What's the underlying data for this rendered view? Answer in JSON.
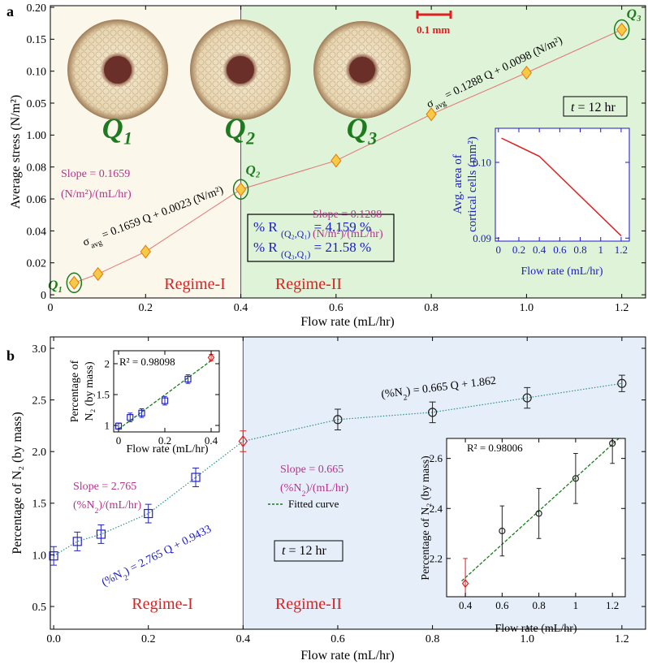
{
  "chart_data": [
    {
      "type": "line",
      "panel_label": "a",
      "xlabel": "Flow rate (mL/hr)",
      "ylabel": "Average stress (N/m²)",
      "xlim": [
        0,
        1.25
      ],
      "ylim": [
        -0.002,
        0.181
      ],
      "xticks": [
        0,
        0.2,
        0.4,
        0.6,
        0.8,
        {
          "value": 1,
          "label": "1.0"
        },
        1.2
      ],
      "yticks": [
        0,
        0.02,
        0.04,
        0.06,
        0.08,
        {
          "value": 0.1,
          "label": "1.00"
        },
        {
          "value": 0.12,
          "label": "0.05"
        },
        {
          "value": 0.14,
          "label": "0.10"
        },
        {
          "value": 0.16,
          "label": "0.15"
        },
        {
          "value": 0.18,
          "label": "0.20"
        }
      ],
      "regime_split": 0.4,
      "shade_colors": [
        "#fbf7ea",
        "#dff3d8"
      ],
      "regimes": [
        "Regime-I",
        "Regime-II"
      ],
      "regime_color": "#e02020",
      "series": [
        {
          "color": "#e57373",
          "marker_fill": "#f7c948",
          "marker_stroke": "#e07b00",
          "x": [
            0.05,
            0.1,
            0.2,
            0.4,
            0.6,
            0.8,
            1.0,
            1.2
          ],
          "values": [
            0.0075,
            0.013,
            0.027,
            0.066,
            0.084,
            0.113,
            0.139,
            0.166
          ]
        }
      ],
      "point_labels": [
        "Q₁",
        "Q₂",
        "Q₃"
      ],
      "point_label_color": "#1f7a1f",
      "image_labels": [
        "Q₁",
        "Q₂",
        "Q₃"
      ],
      "scale_bar": "0.1 mm",
      "scale_bar_color": "#e02020",
      "annotations": [
        {
          "text": "Slope = 0.1659",
          "color": "#b5338f"
        },
        {
          "text": "(N/m²)/(mL/hr)",
          "color": "#b5338f"
        },
        {
          "parts": [
            "σ",
            "avg",
            " = 0.1659 Q + 0.0023 (N/m²)"
          ],
          "sub": [
            1
          ],
          "color": "#000000"
        },
        {
          "text": "Slope = 0.1288",
          "color": "#b5338f"
        },
        {
          "text": "(N/m²)/(mL/hr)",
          "color": "#b5338f"
        },
        {
          "parts": [
            "σ",
            "avg",
            " = 0.1288 Q + 0.0098 (N/m²)"
          ],
          "sub": [
            1
          ],
          "color": "#000000"
        },
        {
          "parts": [
            "% R ",
            "(Q₂,Q₁)",
            " = 4.159 %"
          ],
          "sub": [
            1
          ],
          "color": "#1a1ac8"
        },
        {
          "parts": [
            "% R ",
            "(Q₃,Q₁)",
            " = 21.58 %"
          ],
          "sub": [
            1
          ],
          "color": "#1a1ac8"
        },
        {
          "parts": [
            "t",
            " = 12 hr"
          ],
          "italic": [
            0
          ],
          "color": "#000000"
        }
      ]
    },
    {
      "type": "line",
      "xlabel": "Flow rate (mL/hr)",
      "ylabel": [
        "Avg. area of",
        "cortical cells (mm²)"
      ],
      "axis_color": "#1a1ac8",
      "xlim": [
        -0.03,
        1.28
      ],
      "ylim": [
        0.0896,
        0.1045
      ],
      "xticks": [
        0,
        0.2,
        0.4,
        0.6,
        0.8,
        1,
        1.2
      ],
      "yticks": [
        0.09,
        {
          "value": 0.1,
          "label": "0.10"
        }
      ],
      "series": [
        {
          "color": "#e02020",
          "x": [
            0.03,
            0.4,
            1.2
          ],
          "values": [
            0.1032,
            0.1008,
            0.0903
          ]
        }
      ]
    },
    {
      "type": "errorbar",
      "panel_label": "b",
      "xlabel": "Flow rate (mL/hr)",
      "ylabel": "Percentage of N₂ (by mass)",
      "xlim": [
        -0.007,
        1.25
      ],
      "ylim": [
        0.28,
        3.11
      ],
      "xticks": [
        {
          "value": 0,
          "label": "0.0"
        },
        0.2,
        0.4,
        0.6,
        0.8,
        {
          "value": 1,
          "label": "1.0"
        },
        1.2
      ],
      "yticks": [
        0.5,
        {
          "value": 1,
          "label": "1.0"
        },
        1.5,
        {
          "value": 2,
          "label": "2.0"
        },
        2.5,
        {
          "value": 3,
          "label": "3.0"
        }
      ],
      "regime_split": 0.4,
      "shade_colors": [
        "#ffffff",
        "#e6eff9"
      ],
      "regimes": [
        "Regime-I",
        "Regime-II"
      ],
      "regime_color": "#e02020",
      "connector_color": "#2a8f8f",
      "series": [
        {
          "marker": "square",
          "color": "#2222cc",
          "x": [
            0,
            0.05,
            0.1,
            0.2,
            0.3
          ],
          "values": [
            0.99,
            1.13,
            1.2,
            1.4,
            1.75
          ],
          "errors": [
            0.09,
            0.09,
            0.09,
            0.09,
            0.09
          ]
        },
        {
          "marker": "diamond",
          "color": "#e02020",
          "x": [
            0.4
          ],
          "values": [
            2.1
          ],
          "errors": [
            0.1
          ]
        },
        {
          "marker": "circle",
          "color": "#222222",
          "x": [
            0.6,
            0.8,
            1.0,
            1.2
          ],
          "values": [
            2.31,
            2.38,
            2.52,
            2.66
          ],
          "errors": [
            0.1,
            0.1,
            0.1,
            0.08
          ]
        }
      ],
      "legend": {
        "name": "Fitted curve",
        "color": "#1a7a1a"
      },
      "annotations": [
        {
          "parts": [
            "(%N",
            "2",
            ") = 0.665 Q + 1.862"
          ],
          "sub": [
            1
          ],
          "color": "#000000"
        },
        {
          "parts": [
            "Slope = 2.765"
          ],
          "color": "#b5338f"
        },
        {
          "parts": [
            "(%N",
            "2",
            ")/(mL/hr)"
          ],
          "sub": [
            1
          ],
          "color": "#b5338f"
        },
        {
          "parts": [
            "Slope = 0.665"
          ],
          "color": "#b5338f"
        },
        {
          "parts": [
            "(%N",
            "2",
            ")/(mL/hr)"
          ],
          "sub": [
            1
          ],
          "color": "#b5338f"
        },
        {
          "parts": [
            "(%N",
            "2",
            ") = 2.765 Q + 0.9433"
          ],
          "sub": [
            1
          ],
          "color": "#1a1ac8"
        },
        {
          "parts": [
            "t",
            " = 12 hr"
          ],
          "italic": [
            0
          ],
          "color": "#000000"
        }
      ]
    },
    {
      "type": "errorbar",
      "xlabel": "Flow rate (mL/hr)",
      "ylabel": [
        "Percentage of",
        "N₂ (by mass)"
      ],
      "r2": "R² = 0.98098",
      "xlim": [
        -0.021,
        0.435
      ],
      "ylim": [
        0.895,
        2.21
      ],
      "xticks": [
        0,
        0.2,
        0.4
      ],
      "yticks": [
        1,
        1.5,
        2
      ],
      "series": [
        {
          "marker": "square",
          "color": "#2222cc",
          "x": [
            0,
            0.05,
            0.1,
            0.2,
            0.3
          ],
          "values": [
            0.99,
            1.13,
            1.2,
            1.4,
            1.75
          ],
          "errors": [
            0.05,
            0.07,
            0.07,
            0.07,
            0.07
          ]
        },
        {
          "marker": "diamond",
          "color": "#e02020",
          "x": [
            0.4
          ],
          "values": [
            2.1
          ],
          "errors": [
            0.05
          ]
        }
      ],
      "fit": {
        "color": "#1a7a1a",
        "x": [
          0,
          0.4
        ],
        "values": [
          0.94,
          2.05
        ]
      }
    },
    {
      "type": "errorbar",
      "xlabel": "Flow rate (mL/hr)",
      "ylabel": "Percentage of N₂ (by mass)",
      "r2": "R² = 0.98006",
      "xlim": [
        0.298,
        1.27
      ],
      "ylim": [
        2.047,
        2.68
      ],
      "xticks": [
        0.4,
        0.6,
        0.8,
        1,
        1.2
      ],
      "yticks": [
        2.2,
        2.4,
        2.6
      ],
      "series": [
        {
          "marker": "diamond",
          "color": "#e02020",
          "x": [
            0.4
          ],
          "values": [
            2.1
          ],
          "errors": [
            0.1
          ]
        },
        {
          "marker": "circle",
          "color": "#222222",
          "x": [
            0.6,
            0.8,
            1.0,
            1.2
          ],
          "values": [
            2.31,
            2.38,
            2.52,
            2.66
          ],
          "errors": [
            0.1,
            0.1,
            0.1,
            0.08
          ]
        }
      ],
      "fit": {
        "color": "#1a7a1a",
        "x": [
          0.38,
          1.25
        ],
        "values": [
          2.11,
          2.69
        ]
      }
    }
  ]
}
